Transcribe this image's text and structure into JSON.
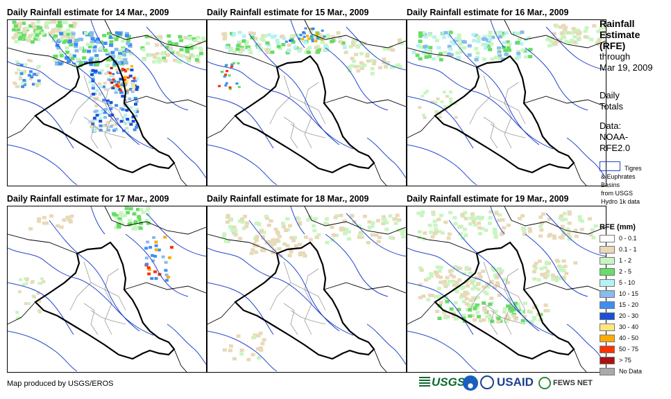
{
  "panels": [
    {
      "title": "Daily Rainfall estimate for 14 Mar., 2009",
      "date": "14 Mar., 2009"
    },
    {
      "title": "Daily Rainfall estimate for 15 Mar., 2009",
      "date": "15 Mar., 2009"
    },
    {
      "title": "Daily Rainfall estimate for 16 Mar., 2009",
      "date": "16 Mar., 2009"
    },
    {
      "title": "Daily Rainfall estimate for 17 Mar., 2009",
      "date": "17 Mar., 2009"
    },
    {
      "title": "Daily Rainfall estimate for 18 Mar., 2009",
      "date": "18 Mar., 2009"
    },
    {
      "title": "Daily Rainfall estimate for 19 Mar., 2009",
      "date": "19 Mar., 2009"
    }
  ],
  "sidebar": {
    "title_line1": "Rainfall",
    "title_line2": "Estimate",
    "title_line3": "(RFE)",
    "through": "through",
    "through_date": "Mar 19, 2009",
    "daily1": "Daily",
    "daily2": "Totals",
    "data1": "Data:",
    "data2": "NOAA-",
    "data3": "RFE2.0",
    "basin1": "Tigres",
    "basin2": "& Euphrates",
    "basin3": "Basins",
    "basin4": "from USGS",
    "basin5": "Hydro 1k data"
  },
  "legend": {
    "title": "RFE (mm)",
    "items": [
      {
        "label": "0 - 0.1",
        "color": "#ffffff"
      },
      {
        "label": "0.1 - 1",
        "color": "#e8d9b8"
      },
      {
        "label": "1 - 2",
        "color": "#c8f5c0"
      },
      {
        "label": "2 - 5",
        "color": "#66dd66"
      },
      {
        "label": "5 - 10",
        "color": "#b6f1f3"
      },
      {
        "label": "10 - 15",
        "color": "#88bbee"
      },
      {
        "label": "15 - 20",
        "color": "#3f8ef2"
      },
      {
        "label": "20 - 30",
        "color": "#1a4fd8"
      },
      {
        "label": "30 - 40",
        "color": "#ffe680"
      },
      {
        "label": "40 - 50",
        "color": "#ffaa00"
      },
      {
        "label": "50 - 75",
        "color": "#ff3300"
      },
      {
        "label": "> 75",
        "color": "#aa1111"
      },
      {
        "label": "No Data",
        "color": "#aaaaaa"
      }
    ]
  },
  "footer": {
    "credit": "Map produced by USGS/EROS"
  },
  "logos": {
    "usgs": "USGS",
    "usaid": "USAID",
    "fewsnet": "FEWS NET"
  },
  "colors": {
    "border": "#000000",
    "rivers": "#2244cc",
    "admin": "#999999"
  }
}
